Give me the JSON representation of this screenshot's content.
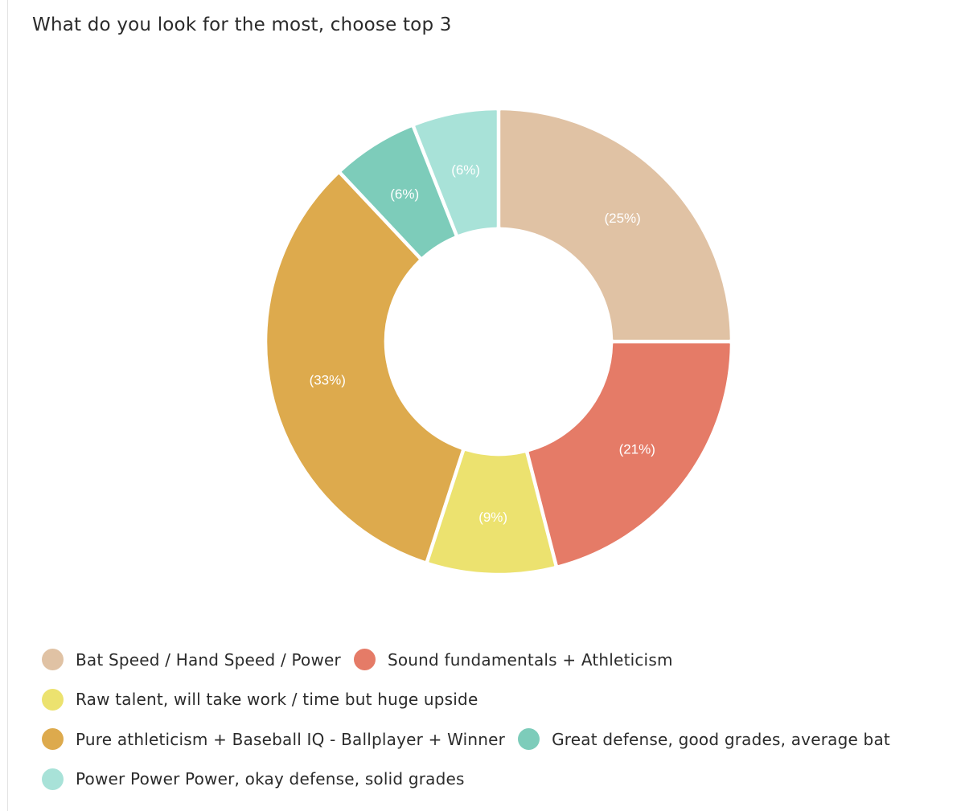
{
  "chart_data": {
    "type": "pie",
    "title": "What do you look for the most, choose top 3",
    "categories": [
      "Bat Speed / Hand Speed / Power",
      "Sound fundamentals + Athleticism",
      "Raw talent, will take work / time but huge upside",
      "Pure athleticism + Baseball IQ - Ballplayer + Winner",
      "Great defense, good grades, average bat",
      "Power Power Power, okay defense, solid grades"
    ],
    "values": [
      25,
      21,
      9,
      33,
      6,
      6
    ],
    "labels": [
      "(25%)",
      "(21%)",
      "(9%)",
      "(33%)",
      "(6%)",
      "(6%)"
    ],
    "colors": [
      "#e0c2a4",
      "#e57b67",
      "#ece26f",
      "#ddaa4d",
      "#7dccba",
      "#a8e2d8"
    ],
    "legend_position": "bottom"
  },
  "legend": {
    "rows": [
      [
        0,
        1
      ],
      [
        2
      ],
      [
        3,
        4
      ],
      [
        5
      ]
    ]
  }
}
